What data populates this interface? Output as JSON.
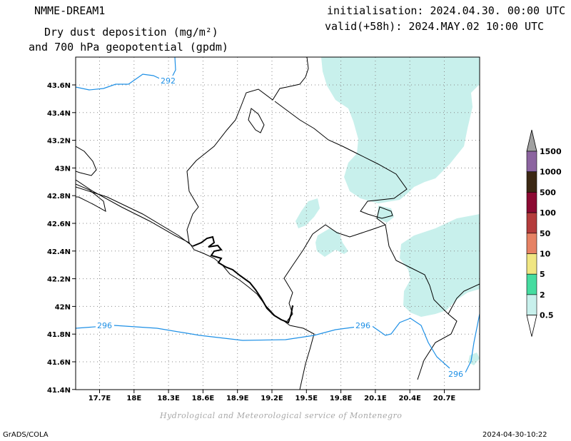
{
  "header": {
    "model": "NMME-DREAM1",
    "title_line1": "Dry dust deposition (mg/m²)",
    "title_line2": "and 700 hPa geopotential (gpdm)",
    "initialisation": "initialisation: 2024.04.30. 00:00 UTC",
    "valid": "valid(+58h): 2024.MAY.02 10:00 UTC"
  },
  "map": {
    "lat_labels": [
      "43.6N",
      "43.4N",
      "43.2N",
      "43N",
      "42.8N",
      "42.6N",
      "42.4N",
      "42.2N",
      "42N",
      "41.8N",
      "41.6N",
      "41.4N"
    ],
    "lon_labels": [
      "17.7E",
      "18E",
      "18.3E",
      "18.6E",
      "18.9E",
      "19.2E",
      "19.5E",
      "19.8E",
      "20.1E",
      "20.4E",
      "20.7E"
    ],
    "contour_labels": [
      "292",
      "296",
      "296",
      "296"
    ],
    "contour_color": "#1e90e6",
    "dust_color": "#c8f0ec"
  },
  "colorbar": {
    "levels": [
      "1500",
      "1000",
      "500",
      "100",
      "50",
      "10",
      "5",
      "2",
      "0.5"
    ],
    "colors": [
      "#a0a0a0",
      "#8c64a0",
      "#3c2814",
      "#8c0a32",
      "#b43c3c",
      "#e68264",
      "#f0e682",
      "#46dca0",
      "#c8f0ec",
      "#ffffff"
    ]
  },
  "footer": {
    "credit": "Hydrological and Meteorological service of Montenegro",
    "software": "GrADS/COLA",
    "timestamp": "2024-04-30-10:22"
  }
}
